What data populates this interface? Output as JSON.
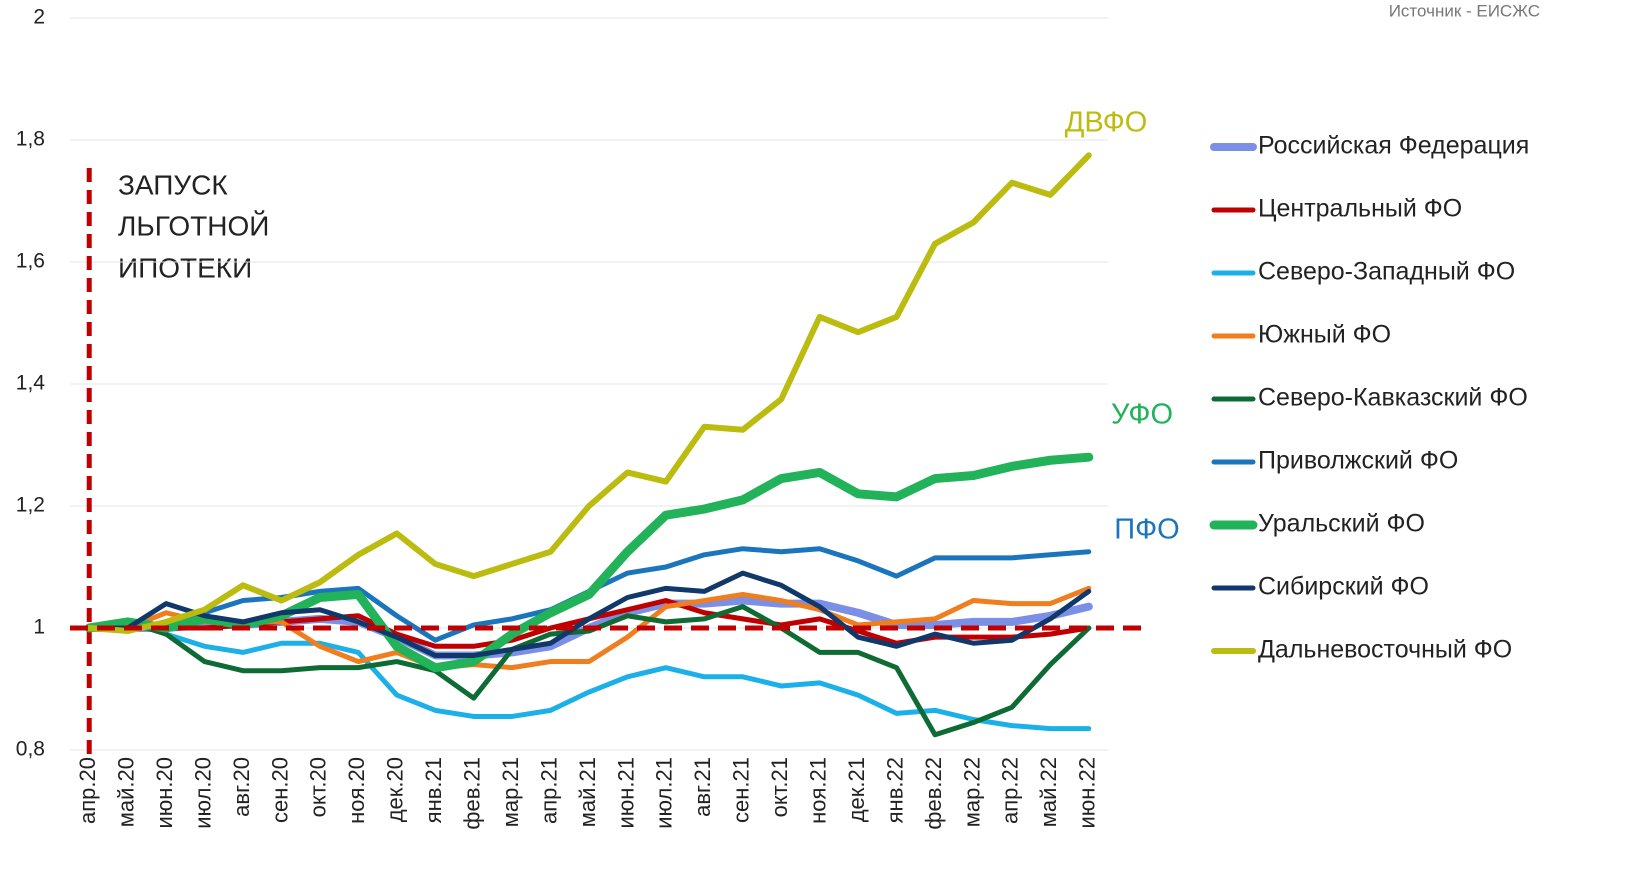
{
  "chart_data": {
    "type": "line",
    "source": "Источник - ЕИСЖС",
    "annotation": [
      "ЗАПУСК",
      "ЛЬГОТНОЙ",
      "ИПОТЕКИ"
    ],
    "vline": {
      "x": "апр.20",
      "color": "#c00000"
    },
    "hline": {
      "y": 1,
      "color": "#c00000"
    },
    "labels": [
      {
        "text": "ДВФО",
        "color": "#bcbc10"
      },
      {
        "text": "УФО",
        "color": "#22b35a"
      },
      {
        "text": "ПФО",
        "color": "#1a75bc"
      }
    ],
    "categories": [
      "апр.20",
      "май.20",
      "июн.20",
      "июл.20",
      "авг.20",
      "сен.20",
      "окт.20",
      "ноя.20",
      "дек.20",
      "янв.21",
      "фев.21",
      "мар.21",
      "апр.21",
      "май.21",
      "июн.21",
      "июл.21",
      "авг.21",
      "сен.21",
      "окт.21",
      "ноя.21",
      "дек.21",
      "янв.22",
      "фев.22",
      "мар.22",
      "апр.22",
      "май.22",
      "июн.22"
    ],
    "series": [
      {
        "name": "Российская Федерация",
        "color": "#7b8fe6",
        "line_width": 8,
        "values": [
          1.0,
          1.0,
          1.0,
          1.005,
          1.005,
          1.01,
          1.015,
          1.01,
          0.985,
          0.955,
          0.955,
          0.96,
          0.97,
          1.0,
          1.025,
          1.04,
          1.04,
          1.045,
          1.04,
          1.04,
          1.025,
          1.005,
          1.005,
          1.01,
          1.01,
          1.02,
          1.035
        ]
      },
      {
        "name": "Центральный ФО",
        "color": "#c00000",
        "line_width": 5,
        "values": [
          1.0,
          1.0,
          1.0,
          1.0,
          1.005,
          1.01,
          1.015,
          1.02,
          0.99,
          0.97,
          0.97,
          0.98,
          1.0,
          1.015,
          1.03,
          1.045,
          1.025,
          1.015,
          1.005,
          1.015,
          0.995,
          0.975,
          0.985,
          0.985,
          0.985,
          0.99,
          1.0
        ]
      },
      {
        "name": "Северо-Западный ФО",
        "color": "#1cb0e8",
        "line_width": 5,
        "values": [
          1.0,
          1.01,
          0.99,
          0.97,
          0.96,
          0.975,
          0.975,
          0.96,
          0.89,
          0.865,
          0.855,
          0.855,
          0.865,
          0.895,
          0.92,
          0.935,
          0.92,
          0.92,
          0.905,
          0.91,
          0.89,
          0.86,
          0.865,
          0.85,
          0.84,
          0.835,
          0.835
        ]
      },
      {
        "name": "Южный ФО",
        "color": "#f07d1e",
        "line_width": 5,
        "values": [
          1.0,
          1.0,
          1.025,
          1.01,
          1.01,
          1.01,
          0.97,
          0.945,
          0.96,
          0.935,
          0.94,
          0.935,
          0.945,
          0.945,
          0.985,
          1.035,
          1.045,
          1.055,
          1.045,
          1.03,
          1.005,
          1.01,
          1.015,
          1.045,
          1.04,
          1.04,
          1.065
        ]
      },
      {
        "name": "Северо-Кавказский ФО",
        "color": "#0e6b33",
        "line_width": 5,
        "values": [
          1.0,
          1.01,
          0.99,
          0.945,
          0.93,
          0.93,
          0.935,
          0.935,
          0.945,
          0.93,
          0.885,
          0.965,
          0.99,
          0.995,
          1.02,
          1.01,
          1.015,
          1.035,
          1.0,
          0.96,
          0.96,
          0.935,
          0.825,
          0.845,
          0.87,
          0.94,
          1.0
        ]
      },
      {
        "name": "Приволжский ФО",
        "color": "#1a75bc",
        "line_width": 5,
        "values": [
          1.0,
          1.0,
          1.0,
          1.025,
          1.045,
          1.05,
          1.06,
          1.065,
          1.02,
          0.98,
          1.005,
          1.015,
          1.03,
          1.06,
          1.09,
          1.1,
          1.12,
          1.13,
          1.125,
          1.13,
          1.11,
          1.085,
          1.115,
          1.115,
          1.115,
          1.12,
          1.125
        ]
      },
      {
        "name": "Уральский ФО",
        "color": "#22b35a",
        "line_width": 9,
        "values": [
          1.0,
          1.01,
          1.0,
          1.015,
          1.005,
          1.02,
          1.05,
          1.055,
          0.97,
          0.935,
          0.945,
          0.99,
          1.025,
          1.055,
          1.125,
          1.185,
          1.195,
          1.21,
          1.245,
          1.255,
          1.22,
          1.215,
          1.245,
          1.25,
          1.265,
          1.275,
          1.28
        ]
      },
      {
        "name": "Сибирский ФО",
        "color": "#10386b",
        "line_width": 5,
        "values": [
          1.0,
          1.0,
          1.04,
          1.02,
          1.01,
          1.025,
          1.03,
          1.01,
          0.985,
          0.955,
          0.955,
          0.965,
          0.975,
          1.015,
          1.05,
          1.065,
          1.06,
          1.09,
          1.07,
          1.035,
          0.985,
          0.97,
          0.99,
          0.975,
          0.98,
          1.015,
          1.06
        ]
      },
      {
        "name": "Дальневосточный ФО",
        "color": "#bcbc10",
        "line_width": 6,
        "values": [
          1.0,
          0.995,
          1.01,
          1.03,
          1.07,
          1.045,
          1.075,
          1.12,
          1.155,
          1.105,
          1.085,
          1.105,
          1.125,
          1.2,
          1.255,
          1.24,
          1.33,
          1.325,
          1.375,
          1.51,
          1.485,
          1.51,
          1.63,
          1.665,
          1.73,
          1.71,
          1.775
        ]
      }
    ],
    "ylim": [
      0.8,
      2
    ],
    "yticks": [
      {
        "value": 0.8,
        "label": "0,8"
      },
      1,
      {
        "value": 1.2,
        "label": "1,2"
      },
      {
        "value": 1.4,
        "label": "1,4"
      },
      {
        "value": 1.6,
        "label": "1,6"
      },
      {
        "value": 1.8,
        "label": "1,8"
      },
      2
    ],
    "grid": true
  }
}
